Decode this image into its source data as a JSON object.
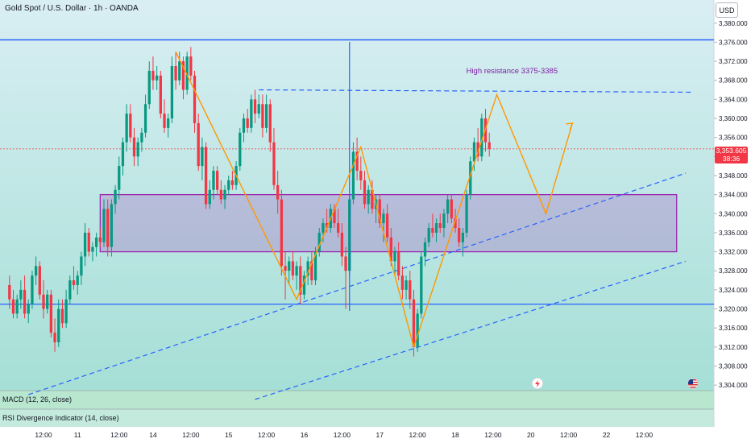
{
  "header": {
    "symbol": "Gold Spot / U.S. Dollar · 1h · OANDA",
    "currency_button": "USD"
  },
  "price_tag": {
    "price": "3,353.605",
    "countdown": "38:36"
  },
  "annotation": {
    "text": "High resistance 3375-3385",
    "color": "#7b1fa2"
  },
  "panes": {
    "macd_label": "MACD (12, 26, close)",
    "rsi_label": "RSI Divergence Indicator (14, close)"
  },
  "icons": {
    "flash_icon": "lightning-bolt",
    "flag_icon": "us-flag"
  },
  "colors": {
    "up": "#089981",
    "down": "#f23645",
    "trendline": "#2962ff",
    "box": "#9c27b0",
    "path": "#ff9800",
    "background_top": "#d6ecf0",
    "background_bottom": "#a8e0d8"
  },
  "chart_data": {
    "type": "candlestick",
    "symbol": "Gold Spot / U.S. Dollar",
    "interval": "1h",
    "yaxis": {
      "ticks": [
        3304,
        3308,
        3312,
        3316,
        3320,
        3324,
        3328,
        3332,
        3336,
        3340,
        3344,
        3348,
        3352,
        3356,
        3360,
        3364,
        3368,
        3372,
        3376,
        3380
      ],
      "tick_labels": [
        "3,304.000",
        "3,308.000",
        "3,312.000",
        "3,316.000",
        "3,320.000",
        "3,324.000",
        "3,328.000",
        "3,332.000",
        "3,336.000",
        "3,340.000",
        "3,344.000",
        "3,348.000",
        "3,352.000",
        "3,356.000",
        "3,360.000",
        "3,364.000",
        "3,368.000",
        "3,372.000",
        "3,376.000",
        "3,380.000"
      ],
      "range": [
        3302.5,
        3382.5
      ]
    },
    "xaxis": {
      "range": [
        0,
        85
      ],
      "ticks": [
        {
          "x": 0,
          "label": "12:00"
        },
        {
          "x": 4.5,
          "label": "11"
        },
        {
          "x": 10,
          "label": "12:00"
        },
        {
          "x": 14.5,
          "label": "14"
        },
        {
          "x": 19.5,
          "label": "12:00"
        },
        {
          "x": 24.5,
          "label": "15"
        },
        {
          "x": 29.5,
          "label": "12:00"
        },
        {
          "x": 34.5,
          "label": "16"
        },
        {
          "x": 39.5,
          "label": "12:00"
        },
        {
          "x": 44.5,
          "label": "17"
        },
        {
          "x": 49.5,
          "label": "12:00"
        },
        {
          "x": 54.5,
          "label": "18"
        },
        {
          "x": 59.5,
          "label": "12:00"
        },
        {
          "x": 64.5,
          "label": "20"
        },
        {
          "x": 69.5,
          "label": "12:00"
        },
        {
          "x": 74.5,
          "label": "22"
        },
        {
          "x": 79.5,
          "label": "12:00"
        }
      ]
    },
    "candles": [
      {
        "x": -4.5,
        "o": 3325,
        "h": 3327,
        "l": 3320,
        "c": 3322
      },
      {
        "x": -4.0,
        "o": 3322,
        "h": 3324,
        "l": 3318,
        "c": 3319
      },
      {
        "x": -3.5,
        "o": 3319,
        "h": 3323,
        "l": 3318,
        "c": 3322
      },
      {
        "x": -3.0,
        "o": 3322,
        "h": 3326,
        "l": 3320,
        "c": 3324
      },
      {
        "x": -2.5,
        "o": 3324,
        "h": 3327,
        "l": 3318,
        "c": 3319
      },
      {
        "x": -2.0,
        "o": 3319,
        "h": 3322,
        "l": 3317,
        "c": 3321
      },
      {
        "x": -1.5,
        "o": 3321,
        "h": 3328,
        "l": 3320,
        "c": 3327
      },
      {
        "x": -1.0,
        "o": 3327,
        "h": 3331,
        "l": 3325,
        "c": 3329
      },
      {
        "x": -0.5,
        "o": 3329,
        "h": 3330,
        "l": 3322,
        "c": 3323
      },
      {
        "x": 0.0,
        "o": 3323,
        "h": 3326,
        "l": 3318,
        "c": 3320
      },
      {
        "x": 0.5,
        "o": 3320,
        "h": 3324,
        "l": 3319,
        "c": 3323
      },
      {
        "x": 1.0,
        "o": 3323,
        "h": 3324,
        "l": 3314,
        "c": 3315
      },
      {
        "x": 1.5,
        "o": 3315,
        "h": 3318,
        "l": 3311,
        "c": 3313
      },
      {
        "x": 2.0,
        "o": 3313,
        "h": 3322,
        "l": 3312,
        "c": 3320
      },
      {
        "x": 2.5,
        "o": 3320,
        "h": 3322,
        "l": 3316,
        "c": 3317
      },
      {
        "x": 3.0,
        "o": 3317,
        "h": 3324,
        "l": 3316,
        "c": 3322
      },
      {
        "x": 3.5,
        "o": 3322,
        "h": 3327,
        "l": 3321,
        "c": 3326
      },
      {
        "x": 4.0,
        "o": 3326,
        "h": 3329,
        "l": 3324,
        "c": 3325
      },
      {
        "x": 4.5,
        "o": 3325,
        "h": 3328,
        "l": 3323,
        "c": 3327
      },
      {
        "x": 5.0,
        "o": 3327,
        "h": 3332,
        "l": 3325,
        "c": 3331
      },
      {
        "x": 5.5,
        "o": 3331,
        "h": 3338,
        "l": 3329,
        "c": 3336
      },
      {
        "x": 6.0,
        "o": 3336,
        "h": 3337,
        "l": 3331,
        "c": 3332
      },
      {
        "x": 6.5,
        "o": 3332,
        "h": 3334,
        "l": 3330,
        "c": 3333
      },
      {
        "x": 7.0,
        "o": 3333,
        "h": 3336,
        "l": 3331,
        "c": 3335
      },
      {
        "x": 7.5,
        "o": 3335,
        "h": 3337,
        "l": 3333,
        "c": 3334
      },
      {
        "x": 8.0,
        "o": 3334,
        "h": 3343,
        "l": 3333,
        "c": 3341
      },
      {
        "x": 8.5,
        "o": 3341,
        "h": 3343,
        "l": 3331,
        "c": 3333
      },
      {
        "x": 9.0,
        "o": 3333,
        "h": 3343,
        "l": 3331,
        "c": 3342
      },
      {
        "x": 9.5,
        "o": 3342,
        "h": 3346,
        "l": 3340,
        "c": 3345
      },
      {
        "x": 10.0,
        "o": 3345,
        "h": 3352,
        "l": 3343,
        "c": 3350
      },
      {
        "x": 10.5,
        "o": 3350,
        "h": 3356,
        "l": 3348,
        "c": 3355
      },
      {
        "x": 11.0,
        "o": 3355,
        "h": 3363,
        "l": 3353,
        "c": 3361
      },
      {
        "x": 11.5,
        "o": 3361,
        "h": 3363,
        "l": 3355,
        "c": 3356
      },
      {
        "x": 12.0,
        "o": 3356,
        "h": 3358,
        "l": 3350,
        "c": 3352
      },
      {
        "x": 12.5,
        "o": 3352,
        "h": 3356,
        "l": 3350,
        "c": 3355
      },
      {
        "x": 13.0,
        "o": 3355,
        "h": 3358,
        "l": 3353,
        "c": 3357
      },
      {
        "x": 13.5,
        "o": 3357,
        "h": 3365,
        "l": 3356,
        "c": 3363
      },
      {
        "x": 14.0,
        "o": 3363,
        "h": 3372,
        "l": 3362,
        "c": 3370
      },
      {
        "x": 14.5,
        "o": 3370,
        "h": 3373,
        "l": 3366,
        "c": 3368
      },
      {
        "x": 15.0,
        "o": 3368,
        "h": 3371,
        "l": 3366,
        "c": 3369
      },
      {
        "x": 15.5,
        "o": 3369,
        "h": 3370,
        "l": 3360,
        "c": 3361
      },
      {
        "x": 16.0,
        "o": 3361,
        "h": 3364,
        "l": 3357,
        "c": 3358
      },
      {
        "x": 16.5,
        "o": 3358,
        "h": 3361,
        "l": 3356,
        "c": 3360
      },
      {
        "x": 17.0,
        "o": 3360,
        "h": 3373,
        "l": 3359,
        "c": 3371
      },
      {
        "x": 17.5,
        "o": 3371,
        "h": 3374,
        "l": 3366,
        "c": 3368
      },
      {
        "x": 18.0,
        "o": 3368,
        "h": 3374,
        "l": 3367,
        "c": 3372
      },
      {
        "x": 18.5,
        "o": 3372,
        "h": 3373,
        "l": 3364,
        "c": 3366
      },
      {
        "x": 19.0,
        "o": 3366,
        "h": 3374,
        "l": 3365,
        "c": 3373
      },
      {
        "x": 19.5,
        "o": 3373,
        "h": 3375,
        "l": 3368,
        "c": 3369
      },
      {
        "x": 20.0,
        "o": 3369,
        "h": 3370,
        "l": 3357,
        "c": 3359
      },
      {
        "x": 20.5,
        "o": 3359,
        "h": 3361,
        "l": 3349,
        "c": 3350
      },
      {
        "x": 21.0,
        "o": 3350,
        "h": 3356,
        "l": 3347,
        "c": 3354
      },
      {
        "x": 21.5,
        "o": 3354,
        "h": 3355,
        "l": 3341,
        "c": 3342
      },
      {
        "x": 22.0,
        "o": 3342,
        "h": 3347,
        "l": 3341,
        "c": 3345
      },
      {
        "x": 22.5,
        "o": 3345,
        "h": 3350,
        "l": 3343,
        "c": 3349
      },
      {
        "x": 23.0,
        "o": 3349,
        "h": 3350,
        "l": 3344,
        "c": 3345
      },
      {
        "x": 23.5,
        "o": 3345,
        "h": 3347,
        "l": 3342,
        "c": 3343
      },
      {
        "x": 24.0,
        "o": 3343,
        "h": 3346,
        "l": 3341,
        "c": 3345
      },
      {
        "x": 24.5,
        "o": 3345,
        "h": 3348,
        "l": 3344,
        "c": 3347
      },
      {
        "x": 25.0,
        "o": 3347,
        "h": 3349,
        "l": 3345,
        "c": 3346
      },
      {
        "x": 25.5,
        "o": 3346,
        "h": 3351,
        "l": 3345,
        "c": 3350
      },
      {
        "x": 26.0,
        "o": 3350,
        "h": 3358,
        "l": 3349,
        "c": 3357
      },
      {
        "x": 26.5,
        "o": 3357,
        "h": 3361,
        "l": 3355,
        "c": 3360
      },
      {
        "x": 27.0,
        "o": 3360,
        "h": 3362,
        "l": 3357,
        "c": 3358
      },
      {
        "x": 27.5,
        "o": 3358,
        "h": 3365,
        "l": 3357,
        "c": 3364
      },
      {
        "x": 28.0,
        "o": 3364,
        "h": 3366,
        "l": 3359,
        "c": 3361
      },
      {
        "x": 28.5,
        "o": 3361,
        "h": 3365,
        "l": 3360,
        "c": 3363
      },
      {
        "x": 29.0,
        "o": 3363,
        "h": 3365,
        "l": 3356,
        "c": 3358
      },
      {
        "x": 29.5,
        "o": 3358,
        "h": 3365,
        "l": 3357,
        "c": 3363
      },
      {
        "x": 30.0,
        "o": 3363,
        "h": 3364,
        "l": 3353,
        "c": 3355
      },
      {
        "x": 30.5,
        "o": 3355,
        "h": 3358,
        "l": 3345,
        "c": 3346
      },
      {
        "x": 31.0,
        "o": 3346,
        "h": 3349,
        "l": 3340,
        "c": 3343
      },
      {
        "x": 31.5,
        "o": 3343,
        "h": 3345,
        "l": 3327,
        "c": 3329
      },
      {
        "x": 32.0,
        "o": 3329,
        "h": 3332,
        "l": 3322,
        "c": 3328
      },
      {
        "x": 32.5,
        "o": 3328,
        "h": 3331,
        "l": 3325,
        "c": 3330
      },
      {
        "x": 33.0,
        "o": 3330,
        "h": 3332,
        "l": 3326,
        "c": 3327
      },
      {
        "x": 33.5,
        "o": 3327,
        "h": 3330,
        "l": 3324,
        "c": 3329
      },
      {
        "x": 34.0,
        "o": 3329,
        "h": 3331,
        "l": 3321,
        "c": 3323
      },
      {
        "x": 34.5,
        "o": 3323,
        "h": 3328,
        "l": 3322,
        "c": 3327
      },
      {
        "x": 35.0,
        "o": 3327,
        "h": 3331,
        "l": 3325,
        "c": 3330
      },
      {
        "x": 35.5,
        "o": 3330,
        "h": 3332,
        "l": 3325,
        "c": 3326
      },
      {
        "x": 36.0,
        "o": 3326,
        "h": 3333,
        "l": 3325,
        "c": 3332
      },
      {
        "x": 36.5,
        "o": 3332,
        "h": 3337,
        "l": 3331,
        "c": 3336
      },
      {
        "x": 37.0,
        "o": 3336,
        "h": 3339,
        "l": 3334,
        "c": 3338
      },
      {
        "x": 37.5,
        "o": 3338,
        "h": 3341,
        "l": 3336,
        "c": 3337
      },
      {
        "x": 38.0,
        "o": 3337,
        "h": 3342,
        "l": 3336,
        "c": 3341
      },
      {
        "x": 38.5,
        "o": 3341,
        "h": 3342,
        "l": 3337,
        "c": 3338
      },
      {
        "x": 39.0,
        "o": 3338,
        "h": 3341,
        "l": 3335,
        "c": 3336
      },
      {
        "x": 39.5,
        "o": 3336,
        "h": 3338,
        "l": 3329,
        "c": 3331
      },
      {
        "x": 40.0,
        "o": 3331,
        "h": 3333,
        "l": 3320,
        "c": 3328
      },
      {
        "x": 40.5,
        "o": 3328,
        "h": 3344,
        "l": 3327,
        "c": 3343
      },
      {
        "x": 41.0,
        "o": 3343,
        "h": 3355,
        "l": 3342,
        "c": 3353
      },
      {
        "x": 41.5,
        "o": 3353,
        "h": 3356,
        "l": 3347,
        "c": 3349
      },
      {
        "x": 42.0,
        "o": 3349,
        "h": 3352,
        "l": 3345,
        "c": 3347
      },
      {
        "x": 42.5,
        "o": 3347,
        "h": 3349,
        "l": 3341,
        "c": 3342
      },
      {
        "x": 43.0,
        "o": 3342,
        "h": 3346,
        "l": 3340,
        "c": 3345
      },
      {
        "x": 43.5,
        "o": 3345,
        "h": 3347,
        "l": 3340,
        "c": 3341
      },
      {
        "x": 44.0,
        "o": 3341,
        "h": 3344,
        "l": 3338,
        "c": 3343
      },
      {
        "x": 44.5,
        "o": 3343,
        "h": 3344,
        "l": 3337,
        "c": 3338
      },
      {
        "x": 45.0,
        "o": 3338,
        "h": 3341,
        "l": 3334,
        "c": 3340
      },
      {
        "x": 45.5,
        "o": 3340,
        "h": 3342,
        "l": 3334,
        "c": 3335
      },
      {
        "x": 46.0,
        "o": 3335,
        "h": 3337,
        "l": 3329,
        "c": 3330
      },
      {
        "x": 46.5,
        "o": 3330,
        "h": 3333,
        "l": 3327,
        "c": 3332
      },
      {
        "x": 47.0,
        "o": 3332,
        "h": 3334,
        "l": 3326,
        "c": 3327
      },
      {
        "x": 47.5,
        "o": 3327,
        "h": 3329,
        "l": 3322,
        "c": 3324
      },
      {
        "x": 48.0,
        "o": 3324,
        "h": 3327,
        "l": 3322,
        "c": 3326
      },
      {
        "x": 48.5,
        "o": 3326,
        "h": 3328,
        "l": 3320,
        "c": 3322
      },
      {
        "x": 49.0,
        "o": 3322,
        "h": 3324,
        "l": 3310,
        "c": 3312
      },
      {
        "x": 49.5,
        "o": 3312,
        "h": 3320,
        "l": 3311,
        "c": 3319
      },
      {
        "x": 50.0,
        "o": 3319,
        "h": 3332,
        "l": 3318,
        "c": 3331
      },
      {
        "x": 50.5,
        "o": 3331,
        "h": 3335,
        "l": 3329,
        "c": 3334
      },
      {
        "x": 51.0,
        "o": 3334,
        "h": 3338,
        "l": 3333,
        "c": 3337
      },
      {
        "x": 51.5,
        "o": 3337,
        "h": 3340,
        "l": 3335,
        "c": 3336
      },
      {
        "x": 52.0,
        "o": 3336,
        "h": 3339,
        "l": 3334,
        "c": 3338
      },
      {
        "x": 52.5,
        "o": 3338,
        "h": 3340,
        "l": 3336,
        "c": 3337
      },
      {
        "x": 53.0,
        "o": 3337,
        "h": 3341,
        "l": 3335,
        "c": 3340
      },
      {
        "x": 53.5,
        "o": 3340,
        "h": 3344,
        "l": 3338,
        "c": 3343
      },
      {
        "x": 54.0,
        "o": 3343,
        "h": 3344,
        "l": 3338,
        "c": 3339
      },
      {
        "x": 54.5,
        "o": 3339,
        "h": 3341,
        "l": 3336,
        "c": 3337
      },
      {
        "x": 55.0,
        "o": 3337,
        "h": 3339,
        "l": 3333,
        "c": 3334
      },
      {
        "x": 55.5,
        "o": 3334,
        "h": 3337,
        "l": 3331,
        "c": 3336
      },
      {
        "x": 56.0,
        "o": 3336,
        "h": 3345,
        "l": 3335,
        "c": 3344
      },
      {
        "x": 56.5,
        "o": 3344,
        "h": 3352,
        "l": 3343,
        "c": 3351
      },
      {
        "x": 57.0,
        "o": 3351,
        "h": 3356,
        "l": 3349,
        "c": 3355
      },
      {
        "x": 57.5,
        "o": 3355,
        "h": 3358,
        "l": 3351,
        "c": 3352
      },
      {
        "x": 58.0,
        "o": 3352,
        "h": 3361,
        "l": 3351,
        "c": 3360
      },
      {
        "x": 58.5,
        "o": 3360,
        "h": 3362,
        "l": 3353,
        "c": 3355
      },
      {
        "x": 59.0,
        "o": 3355,
        "h": 3357,
        "l": 3352,
        "c": 3353.605
      }
    ],
    "levels": {
      "upper_channel_line": 3376.5,
      "lower_horizontal_line": 3321
    },
    "zone": {
      "from_x": 7.5,
      "to_x": 83.8,
      "low": 3332,
      "high": 3344
    },
    "dashed_resistance": {
      "x1": 28.5,
      "y1": 3366,
      "x2": 86,
      "y2": 3365.5
    },
    "trendlines": [
      {
        "x1": -2,
        "y1": 3302,
        "x2": 85,
        "y2": 3348.5
      },
      {
        "x1": 28,
        "y1": 3301,
        "x2": 85,
        "y2": 3330
      }
    ],
    "projection_path": [
      {
        "x": 17.5,
        "y": 3374
      },
      {
        "x": 33.5,
        "y": 3322
      },
      {
        "x": 42,
        "y": 3354
      },
      {
        "x": 49,
        "y": 3312
      },
      {
        "x": 60,
        "y": 3365
      },
      {
        "x": 66.5,
        "y": 3340
      },
      {
        "x": 70,
        "y": 3359
      }
    ],
    "annotations": [
      {
        "text": "High resistance 3375-3385",
        "x": 62,
        "y": 3369.5
      }
    ],
    "last_price": 3353.605
  }
}
